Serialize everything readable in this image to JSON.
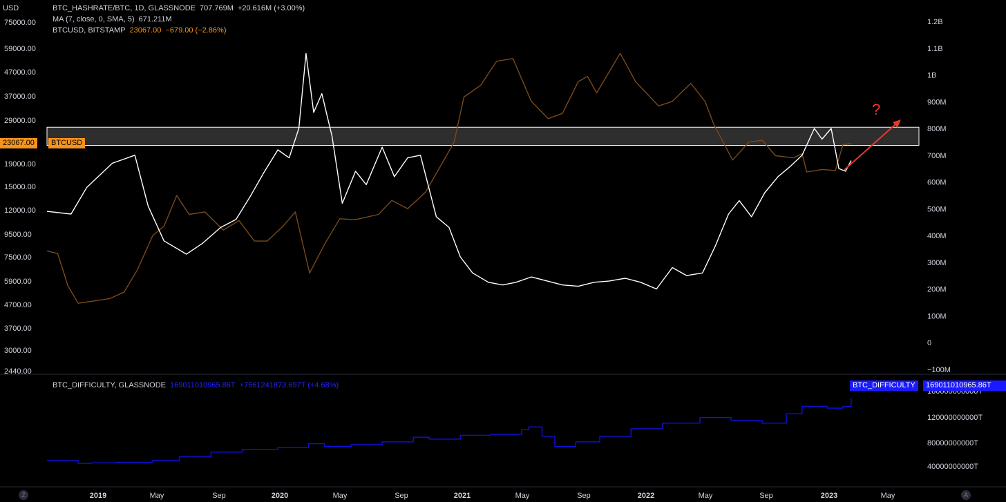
{
  "currency_label": "USD",
  "legend": {
    "hashrate": {
      "name": "BTC_HASHRATE/BTC, 1D, GLASSNODE",
      "value": "707.769M",
      "change": "+20.616M (+3.00%)"
    },
    "ma": {
      "name": "MA (7, close, 0, SMA, 5)",
      "value": "671.211M"
    },
    "btcusd": {
      "name": "BTCUSD, BITSTAMP",
      "value": "23067.00",
      "change": "−679.00 (−2.86%)"
    }
  },
  "difficulty_legend": {
    "name": "BTC_DIFFICULTY, GLASSNODE",
    "value": "169011010965.86T",
    "change": "+7561241873.697T (+4.68%)"
  },
  "price_tag": {
    "value": "23067.00",
    "label": "BTCUSD"
  },
  "difficulty_tag": {
    "label": "BTC_DIFFICULTY",
    "value": "169011010965.86T"
  },
  "annotation": "?",
  "corner_left": "Z",
  "corner_right": "A",
  "colors": {
    "hashrate": "#ffffff",
    "btcusd": "#7a4a1c",
    "difficulty": "#1010e0",
    "price_tag": "#f7931a",
    "difficulty_tag": "#1a1aff",
    "arrow": "#e8382c",
    "zone": "#3a3a3a"
  },
  "chart_data": [
    {
      "type": "line",
      "x_axis_ticks": [
        "2019",
        "May",
        "Sep",
        "2020",
        "May",
        "Sep",
        "2021",
        "May",
        "Sep",
        "2022",
        "May",
        "Sep",
        "2023",
        "May"
      ],
      "left_axis": {
        "label": "USD",
        "scale": "log",
        "ticks": [
          "75000.00",
          "59000.00",
          "47000.00",
          "37000.00",
          "29000.00",
          "23067.00",
          "19000.00",
          "15000.00",
          "12000.00",
          "9500.00",
          "7500.00",
          "5900.00",
          "4700.00",
          "3700.00",
          "3000.00",
          "2440.00"
        ]
      },
      "right_axis": {
        "ticks": [
          "1.2B",
          "1.1B",
          "1B",
          "900M",
          "800M",
          "700M",
          "600M",
          "500M",
          "400M",
          "300M",
          "200M",
          "100M",
          "0",
          "−100M"
        ]
      },
      "zone": {
        "price_range": [
          22600,
          28000
        ]
      },
      "series": [
        {
          "name": "BTC_HASHRATE/BTC",
          "axis": "right",
          "x": [
            "2018-10-15",
            "2018-12-01",
            "2019-01-01",
            "2019-02-20",
            "2019-04-05",
            "2019-05-01",
            "2019-06-01",
            "2019-07-15",
            "2019-08-15",
            "2019-09-20",
            "2019-10-20",
            "2019-11-15",
            "2019-12-15",
            "2020-01-10",
            "2020-02-01",
            "2020-02-20",
            "2020-03-05",
            "2020-03-20",
            "2020-04-05",
            "2020-04-25",
            "2020-05-15",
            "2020-06-10",
            "2020-07-01",
            "2020-08-01",
            "2020-08-25",
            "2020-09-20",
            "2020-10-15",
            "2020-11-15",
            "2020-12-10",
            "2021-01-01",
            "2021-01-25",
            "2021-02-25",
            "2021-03-25",
            "2021-04-20",
            "2021-05-20",
            "2021-06-20",
            "2021-07-20",
            "2021-08-20",
            "2021-09-20",
            "2021-10-20",
            "2021-11-20",
            "2021-12-20",
            "2022-01-20",
            "2022-02-20",
            "2022-03-20",
            "2022-04-20",
            "2022-05-15",
            "2022-06-10",
            "2022-07-01",
            "2022-07-25",
            "2022-08-20",
            "2022-09-15",
            "2022-10-10",
            "2022-11-01",
            "2022-11-25",
            "2022-12-10",
            "2022-12-28",
            "2023-01-12",
            "2023-01-25",
            "2023-02-05"
          ],
          "values": [
            490,
            480,
            580,
            670,
            700,
            510,
            380,
            330,
            370,
            430,
            460,
            540,
            640,
            720,
            690,
            800,
            1080,
            860,
            930,
            770,
            520,
            640,
            590,
            730,
            620,
            690,
            700,
            470,
            430,
            320,
            260,
            225,
            215,
            225,
            245,
            230,
            215,
            210,
            225,
            230,
            240,
            225,
            200,
            280,
            250,
            260,
            360,
            480,
            530,
            470,
            560,
            620,
            660,
            700,
            800,
            760,
            800,
            650,
            640,
            680
          ]
        },
        {
          "name": "BTCUSD",
          "axis": "left",
          "x": [
            "2018-10-15",
            "2018-11-05",
            "2018-11-25",
            "2018-12-15",
            "2019-01-15",
            "2019-02-15",
            "2019-03-15",
            "2019-04-10",
            "2019-05-10",
            "2019-06-01",
            "2019-06-26",
            "2019-07-20",
            "2019-08-20",
            "2019-09-25",
            "2019-10-26",
            "2019-11-25",
            "2019-12-20",
            "2020-01-20",
            "2020-02-13",
            "2020-03-12",
            "2020-04-10",
            "2020-05-10",
            "2020-06-10",
            "2020-07-25",
            "2020-08-20",
            "2020-09-20",
            "2020-10-25",
            "2020-11-25",
            "2020-12-20",
            "2021-01-08",
            "2021-02-10",
            "2021-03-13",
            "2021-04-14",
            "2021-05-20",
            "2021-06-22",
            "2021-07-20",
            "2021-08-20",
            "2021-09-07",
            "2021-09-25",
            "2021-11-10",
            "2021-12-10",
            "2022-01-24",
            "2022-02-20",
            "2022-03-28",
            "2022-04-25",
            "2022-05-12",
            "2022-06-18",
            "2022-07-20",
            "2022-08-15",
            "2022-09-10",
            "2022-10-15",
            "2022-11-01",
            "2022-11-10",
            "2022-12-10",
            "2023-01-05",
            "2023-01-20",
            "2023-02-05"
          ],
          "values": [
            6500,
            6300,
            4300,
            3500,
            3600,
            3700,
            4000,
            5200,
            7800,
            8700,
            12500,
            10000,
            10300,
            8300,
            9300,
            7300,
            7300,
            8700,
            10300,
            5000,
            7000,
            9500,
            9400,
            10000,
            11800,
            10700,
            13000,
            18000,
            23500,
            40000,
            46000,
            61000,
            63000,
            38000,
            31000,
            33000,
            48000,
            51000,
            42000,
            67000,
            48000,
            36000,
            38000,
            47000,
            38000,
            29000,
            19000,
            23500,
            24000,
            20000,
            19500,
            20500,
            16500,
            17000,
            16800,
            22800,
            23067
          ]
        }
      ]
    },
    {
      "type": "line",
      "name": "BTC_DIFFICULTY",
      "y_axis_ticks": [
        "160000000000T",
        "120000000000T",
        "80000000000T",
        "40000000000T"
      ],
      "x": [
        "2018-10-15",
        "2018-12-15",
        "2019-01-10",
        "2019-03-01",
        "2019-05-10",
        "2019-07-01",
        "2019-09-01",
        "2019-11-01",
        "2020-01-10",
        "2020-03-10",
        "2020-04-10",
        "2020-06-01",
        "2020-08-01",
        "2020-10-01",
        "2020-11-01",
        "2021-01-01",
        "2021-03-01",
        "2021-05-01",
        "2021-05-15",
        "2021-06-10",
        "2021-07-05",
        "2021-08-15",
        "2021-10-01",
        "2021-12-01",
        "2022-02-01",
        "2022-04-15",
        "2022-06-15",
        "2022-08-15",
        "2022-10-01",
        "2022-11-01",
        "2022-12-20",
        "2023-01-20",
        "2023-02-05"
      ],
      "values": [
        7,
        5.5,
        5.8,
        6.1,
        7.0,
        9.0,
        11.5,
        13.0,
        14.0,
        16.0,
        14.5,
        15.5,
        17.0,
        19.5,
        18.5,
        20.5,
        21.0,
        23.5,
        25.0,
        20.0,
        14.5,
        17.0,
        20.0,
        24.0,
        27.0,
        30.0,
        28.5,
        27.0,
        32.0,
        36.0,
        35.0,
        36.0,
        40.5
      ]
    }
  ]
}
